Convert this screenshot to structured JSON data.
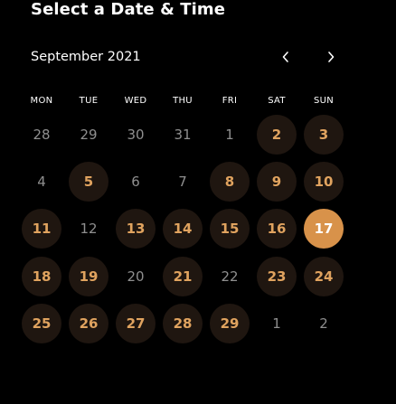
{
  "header": {
    "title": "Select a Date & Time"
  },
  "calendar": {
    "month_label": "September 2021",
    "prev_icon": "chevron-left-icon",
    "next_icon": "chevron-right-icon",
    "weekdays": [
      "MON",
      "TUE",
      "WED",
      "THU",
      "FRI",
      "SAT",
      "SUN"
    ],
    "weeks": [
      [
        {
          "label": "28",
          "state": "plain"
        },
        {
          "label": "29",
          "state": "plain"
        },
        {
          "label": "30",
          "state": "plain"
        },
        {
          "label": "31",
          "state": "plain"
        },
        {
          "label": "1",
          "state": "plain"
        },
        {
          "label": "2",
          "state": "available"
        },
        {
          "label": "3",
          "state": "available"
        }
      ],
      [
        {
          "label": "4",
          "state": "plain"
        },
        {
          "label": "5",
          "state": "available"
        },
        {
          "label": "6",
          "state": "plain"
        },
        {
          "label": "7",
          "state": "plain"
        },
        {
          "label": "8",
          "state": "available"
        },
        {
          "label": "9",
          "state": "available"
        },
        {
          "label": "10",
          "state": "available"
        }
      ],
      [
        {
          "label": "11",
          "state": "available"
        },
        {
          "label": "12",
          "state": "plain"
        },
        {
          "label": "13",
          "state": "available"
        },
        {
          "label": "14",
          "state": "available"
        },
        {
          "label": "15",
          "state": "available"
        },
        {
          "label": "16",
          "state": "available"
        },
        {
          "label": "17",
          "state": "selected"
        }
      ],
      [
        {
          "label": "18",
          "state": "available"
        },
        {
          "label": "19",
          "state": "available"
        },
        {
          "label": "20",
          "state": "plain"
        },
        {
          "label": "21",
          "state": "available"
        },
        {
          "label": "22",
          "state": "plain"
        },
        {
          "label": "23",
          "state": "available"
        },
        {
          "label": "24",
          "state": "available"
        }
      ],
      [
        {
          "label": "25",
          "state": "available"
        },
        {
          "label": "26",
          "state": "available"
        },
        {
          "label": "27",
          "state": "available"
        },
        {
          "label": "28",
          "state": "available"
        },
        {
          "label": "29",
          "state": "available"
        },
        {
          "label": "1",
          "state": "plain"
        },
        {
          "label": "2",
          "state": "plain"
        }
      ]
    ]
  },
  "colors": {
    "background": "#000000",
    "accent": "#d8924a",
    "available_text": "#e0a35f",
    "available_bg": "#1f1610",
    "muted_text": "#8f8f8f"
  }
}
